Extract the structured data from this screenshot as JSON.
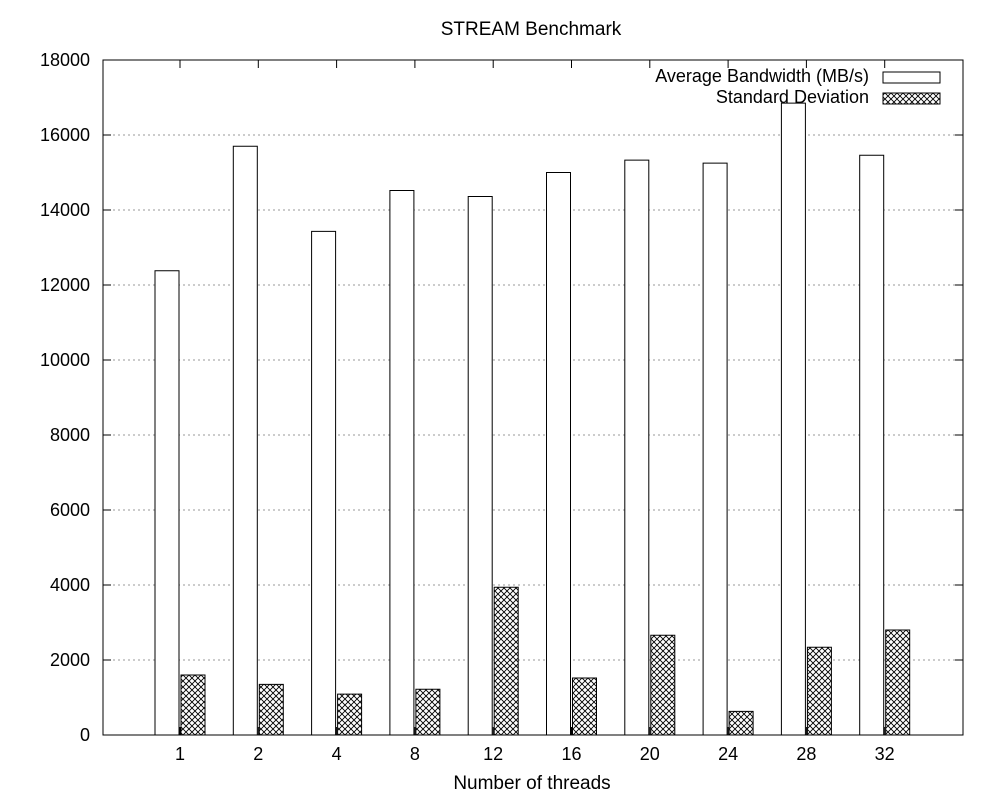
{
  "chart_data": {
    "type": "bar",
    "title": "STREAM Benchmark",
    "xlabel": "Number of threads",
    "ylabel": "",
    "categories": [
      "1",
      "2",
      "4",
      "8",
      "12",
      "16",
      "20",
      "24",
      "28",
      "32"
    ],
    "series": [
      {
        "name": "Average Bandwidth (MB/s)",
        "pattern": "empty",
        "values": [
          12380,
          15700,
          13430,
          14520,
          14360,
          15000,
          15330,
          15250,
          16850,
          15460
        ]
      },
      {
        "name": "Standard Deviation",
        "pattern": "crosshatch",
        "values": [
          1600,
          1350,
          1090,
          1220,
          3940,
          1520,
          2660,
          630,
          2340,
          2800
        ]
      }
    ],
    "ylim": [
      0,
      18000
    ],
    "yticks": [
      "0",
      "2000",
      "4000",
      "6000",
      "8000",
      "10000",
      "12000",
      "14000",
      "16000",
      "18000"
    ],
    "grid": "horizontal dotted",
    "legend_position": "top-right",
    "colors": {
      "bar_fill": "#ffffff",
      "bar_stroke": "#000000",
      "grid": "#9a9a9a"
    }
  }
}
